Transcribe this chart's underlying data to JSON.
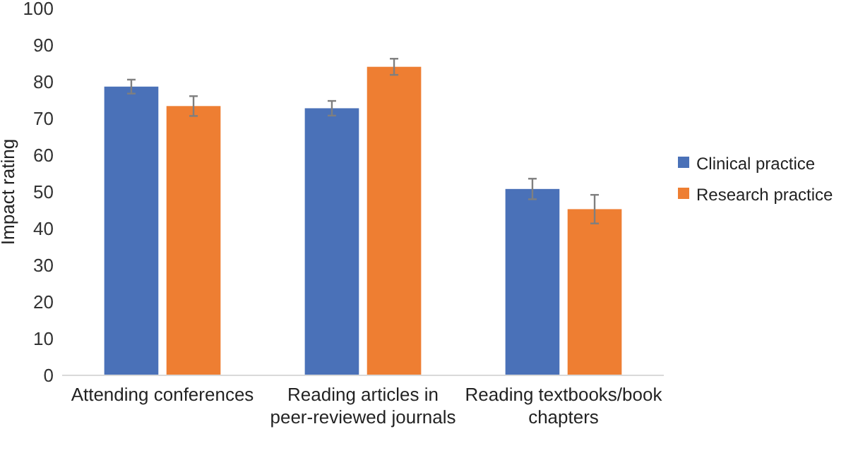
{
  "chart_data": {
    "type": "bar",
    "ylabel": "Impact rating",
    "categories": [
      "Attending conferences",
      "Reading articles in peer-reviewed journals",
      "Reading textbooks/book chapters"
    ],
    "series": [
      {
        "name": "Clinical practice",
        "color": "#4a71b8",
        "values": [
          78.7,
          72.8,
          50.8
        ],
        "errors": [
          1.9,
          2,
          2.8
        ]
      },
      {
        "name": "Research practice",
        "color": "#ee7e32",
        "values": [
          73.4,
          84.1,
          45.3
        ],
        "errors": [
          2.7,
          2.2,
          3.9
        ]
      }
    ],
    "ylim": [
      0,
      100
    ],
    "yticks": [
      0,
      10,
      20,
      30,
      40,
      50,
      60,
      70,
      80,
      90,
      100
    ],
    "grid": false,
    "legend": "right"
  }
}
